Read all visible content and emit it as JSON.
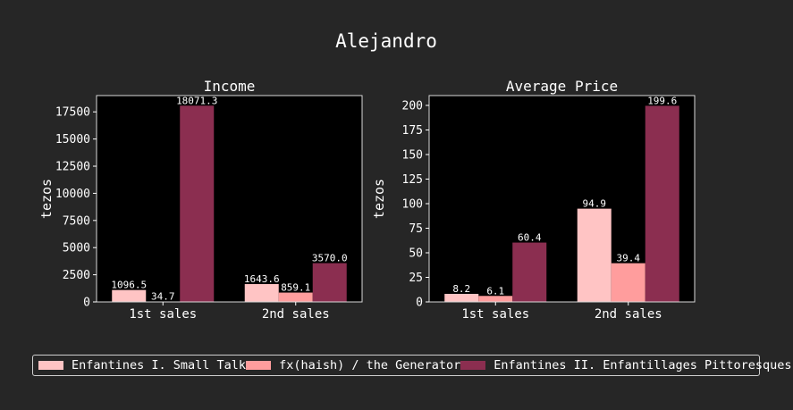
{
  "figure": {
    "title": "Alejandro",
    "background": "#262626",
    "axes_background": "#000000",
    "text_color": "#ffffff"
  },
  "legend": {
    "placement": "bottom",
    "items": [
      {
        "label": "Enfantines I. Small Talk",
        "color": "#ffc4c4"
      },
      {
        "label": "fx(haish) / the Generator",
        "color": "#ff9d9d"
      },
      {
        "label": "Enfantines II. Enfantillages Pittoresques",
        "color": "#8b2e50"
      }
    ]
  },
  "chart_data": [
    {
      "type": "bar",
      "title": "Income",
      "ylabel": "tezos",
      "xlabel": "",
      "categories": [
        "1st sales",
        "2nd sales"
      ],
      "ylim": [
        0,
        19000
      ],
      "yticks": [
        0,
        2500,
        5000,
        7500,
        10000,
        12500,
        15000,
        17500
      ],
      "grid": false,
      "series": [
        {
          "name": "Enfantines I. Small Talk",
          "color": "#ffc4c4",
          "values": [
            1096.5,
            1643.6
          ],
          "labels": [
            "1096.5",
            "1643.6"
          ]
        },
        {
          "name": "fx(haish) / the Generator",
          "color": "#ff9d9d",
          "values": [
            34.7,
            859.1
          ],
          "labels": [
            "34.7",
            "859.1"
          ]
        },
        {
          "name": "Enfantines II. Enfantillages Pittoresques",
          "color": "#8b2e50",
          "values": [
            18071.3,
            3570.0
          ],
          "labels": [
            "18071.3",
            "3570.0"
          ]
        }
      ]
    },
    {
      "type": "bar",
      "title": "Average Price",
      "ylabel": "tezos",
      "xlabel": "",
      "categories": [
        "1st sales",
        "2nd sales"
      ],
      "ylim": [
        0,
        210
      ],
      "yticks": [
        0,
        25,
        50,
        75,
        100,
        125,
        150,
        175,
        200
      ],
      "grid": false,
      "series": [
        {
          "name": "Enfantines I. Small Talk",
          "color": "#ffc4c4",
          "values": [
            8.2,
            94.9
          ],
          "labels": [
            "8.2",
            "94.9"
          ]
        },
        {
          "name": "fx(haish) / the Generator",
          "color": "#ff9d9d",
          "values": [
            6.1,
            39.4
          ],
          "labels": [
            "6.1",
            "39.4"
          ]
        },
        {
          "name": "Enfantines II. Enfantillages Pittoresques",
          "color": "#8b2e50",
          "values": [
            60.4,
            199.6
          ],
          "labels": [
            "60.4",
            "199.6"
          ]
        }
      ]
    }
  ]
}
